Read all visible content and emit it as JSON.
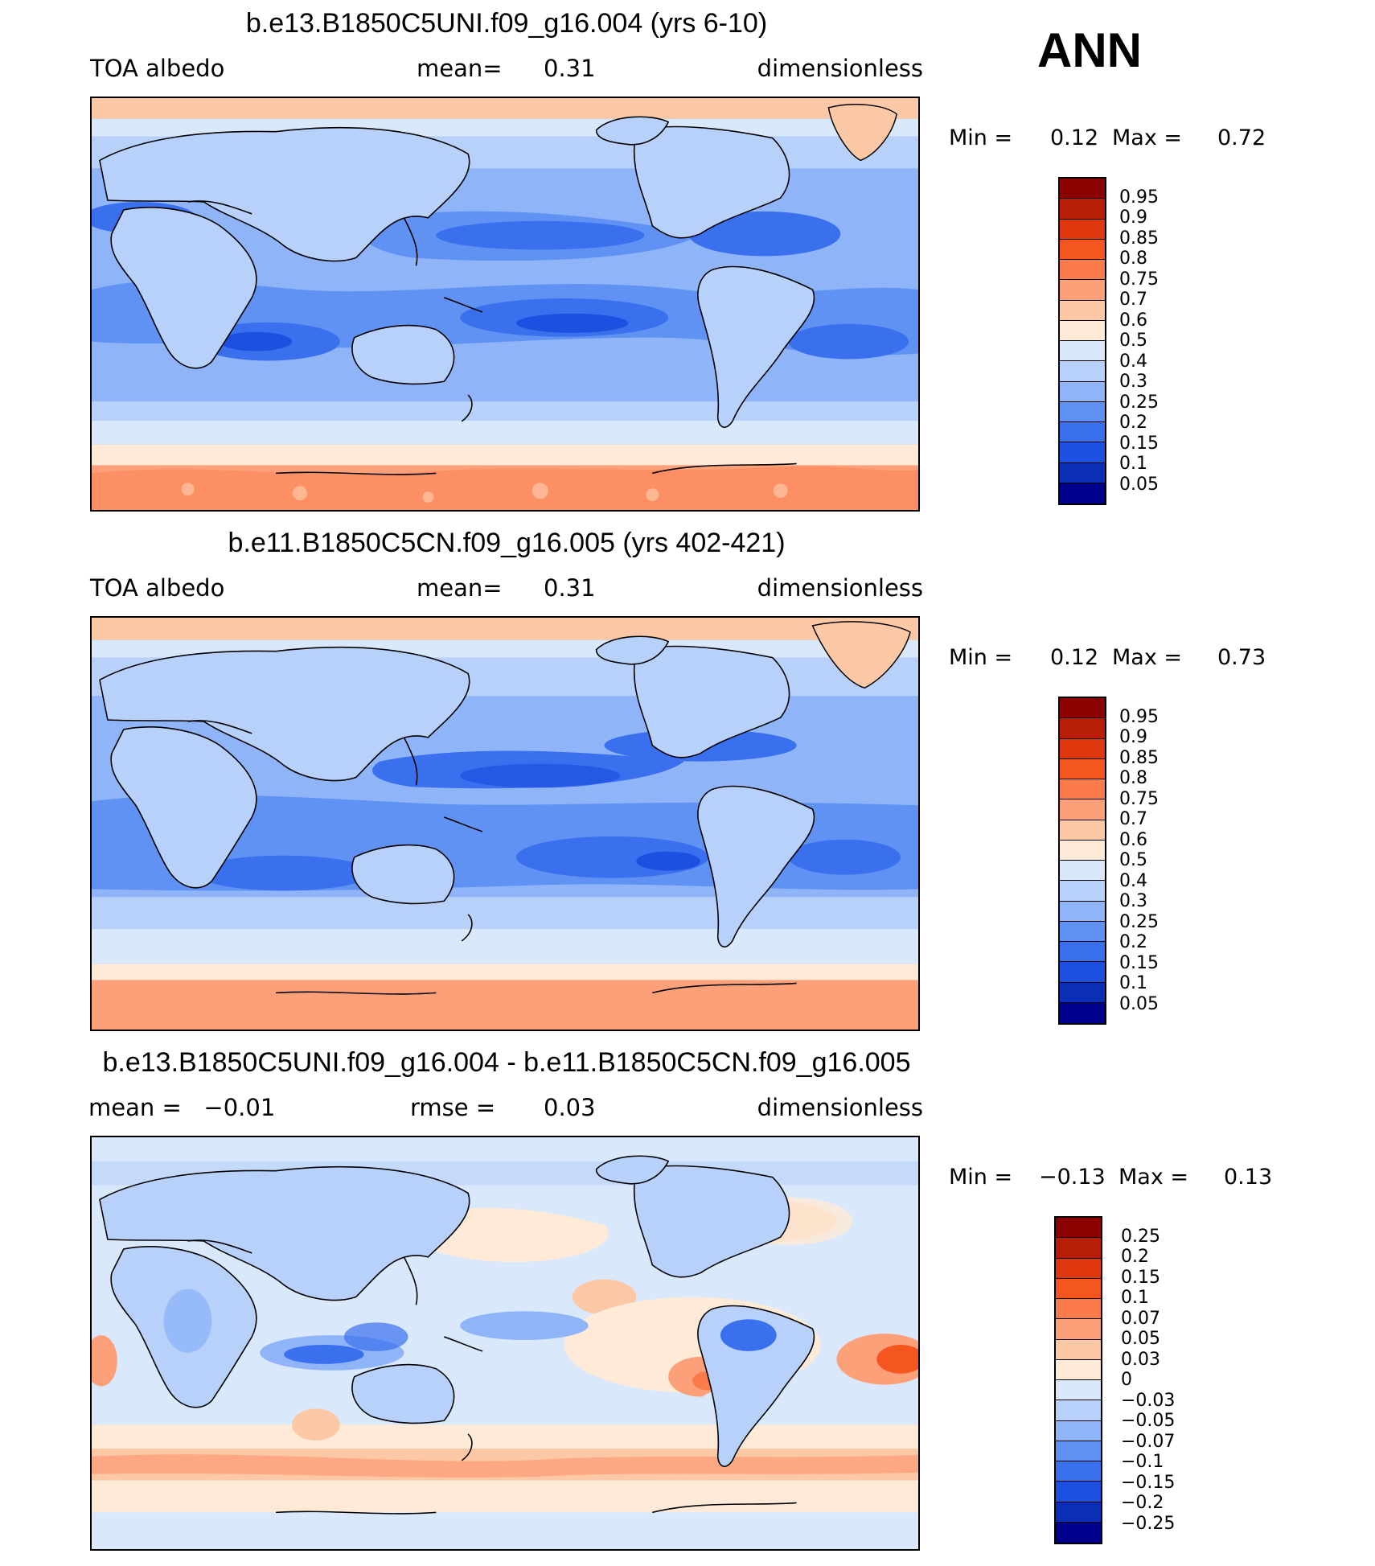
{
  "season": "ANN",
  "panels": [
    {
      "title": "b.e13.B1850C5UNI.f09_g16.004 (yrs 6-10)",
      "left_label": "TOA albedo",
      "mid_key": "mean=",
      "mid_value": "0.31",
      "right_label": "dimensionless",
      "min_label": "Min =",
      "min_value": "0.12",
      "max_label": "Max =",
      "max_value": "0.72",
      "colorbar": {
        "labels": [
          "0.95",
          "0.9",
          "0.85",
          "0.8",
          "0.75",
          "0.7",
          "0.6",
          "0.5",
          "0.4",
          "0.3",
          "0.25",
          "0.2",
          "0.15",
          "0.1",
          "0.05"
        ],
        "colors": [
          "#8b0000",
          "#b81d05",
          "#e0380d",
          "#f5561f",
          "#fc7b4a",
          "#fca07a",
          "#fdc8a6",
          "#feead6",
          "#d9e9fb",
          "#b7d1fb",
          "#8fb5f8",
          "#5f92f3",
          "#3a6fed",
          "#1d4fe0",
          "#0a2fb5",
          "#00008c"
        ]
      }
    },
    {
      "title": "b.e11.B1850C5CN.f09_g16.005 (yrs 402-421)",
      "left_label": "TOA albedo",
      "mid_key": "mean=",
      "mid_value": "0.31",
      "right_label": "dimensionless",
      "min_label": "Min =",
      "min_value": "0.12",
      "max_label": "Max =",
      "max_value": "0.73",
      "colorbar": {
        "labels": [
          "0.95",
          "0.9",
          "0.85",
          "0.8",
          "0.75",
          "0.7",
          "0.6",
          "0.5",
          "0.4",
          "0.3",
          "0.25",
          "0.2",
          "0.15",
          "0.1",
          "0.05"
        ],
        "colors": [
          "#8b0000",
          "#b81d05",
          "#e0380d",
          "#f5561f",
          "#fc7b4a",
          "#fca07a",
          "#fdc8a6",
          "#feead6",
          "#d9e9fb",
          "#b7d1fb",
          "#8fb5f8",
          "#5f92f3",
          "#3a6fed",
          "#1d4fe0",
          "#0a2fb5",
          "#00008c"
        ]
      }
    },
    {
      "title": "b.e13.B1850C5UNI.f09_g16.004 - b.e11.B1850C5CN.f09_g16.005",
      "left_label": "mean =   −0.01",
      "mid_key": "rmse =",
      "mid_value": "0.03",
      "right_label": "dimensionless",
      "min_label": "Min =",
      "min_value": "−0.13",
      "max_label": "Max =",
      "max_value": "0.13",
      "colorbar": {
        "labels": [
          "0.25",
          "0.2",
          "0.15",
          "0.1",
          "0.07",
          "0.05",
          "0.03",
          "0",
          "−0.03",
          "−0.05",
          "−0.07",
          "−0.1",
          "−0.15",
          "−0.2",
          "−0.25"
        ],
        "colors": [
          "#8b0000",
          "#b81d05",
          "#e0380d",
          "#f5561f",
          "#fc7b4a",
          "#fca07a",
          "#fdc8a6",
          "#feead6",
          "#d9e9fb",
          "#b7d1fb",
          "#8fb5f8",
          "#5f92f3",
          "#3a6fed",
          "#1d4fe0",
          "#0a2fb5",
          "#00008c"
        ]
      }
    }
  ]
}
